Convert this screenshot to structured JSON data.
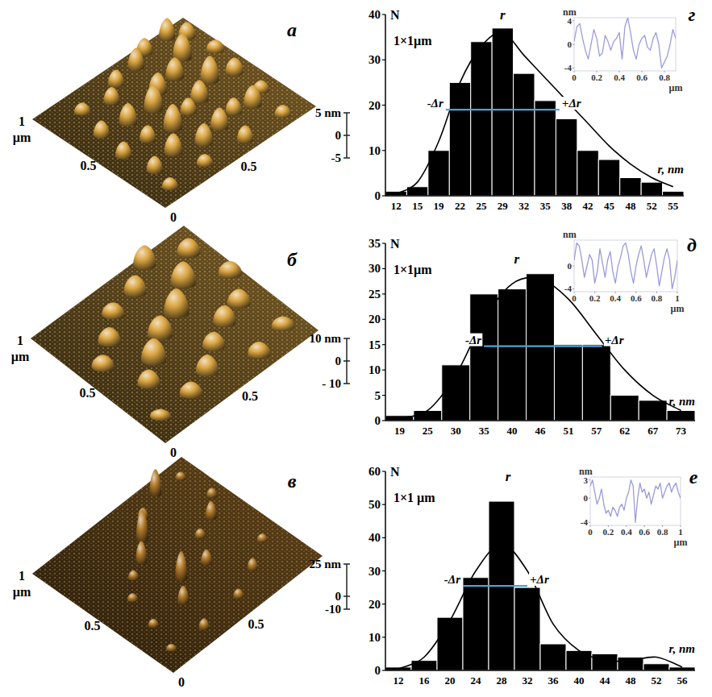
{
  "chart_data": [
    {
      "type": "surface",
      "label": "а",
      "color": "#d9a441",
      "xlim": [
        0,
        1
      ],
      "ylim": [
        0,
        1
      ],
      "xticks": [
        0,
        0.5
      ],
      "yticks": [
        0.5,
        1
      ],
      "ylabel": "µm",
      "zlim": [
        -5,
        5
      ],
      "zticks": [
        {
          "value": 5,
          "label": "5 nm"
        },
        0,
        -5
      ],
      "peaks": [
        [
          0.92,
          0.88,
          3,
          48
        ],
        [
          0.85,
          0.95,
          4,
          45
        ],
        [
          0.95,
          0.7,
          2,
          50
        ],
        [
          0.7,
          0.95,
          3,
          45
        ],
        [
          0.8,
          0.78,
          5,
          52
        ],
        [
          0.6,
          0.9,
          4,
          45
        ],
        [
          0.9,
          0.5,
          3,
          50
        ],
        [
          0.68,
          0.7,
          4,
          50
        ],
        [
          0.45,
          0.88,
          3,
          45
        ],
        [
          0.78,
          0.55,
          5,
          52
        ],
        [
          0.55,
          0.68,
          4,
          50
        ],
        [
          0.9,
          0.3,
          2,
          45
        ],
        [
          0.35,
          0.8,
          3,
          45
        ],
        [
          0.65,
          0.48,
          4,
          50
        ],
        [
          0.45,
          0.6,
          5,
          52
        ],
        [
          0.2,
          0.85,
          2,
          45
        ],
        [
          0.8,
          0.25,
          4,
          50
        ],
        [
          0.55,
          0.45,
          3,
          45
        ],
        [
          0.7,
          0.28,
          3,
          45
        ],
        [
          0.3,
          0.62,
          4,
          50
        ],
        [
          0.42,
          0.42,
          5,
          52
        ],
        [
          0.15,
          0.65,
          3,
          45
        ],
        [
          0.58,
          0.25,
          4,
          50
        ],
        [
          0.28,
          0.45,
          3,
          45
        ],
        [
          0.85,
          0.08,
          2,
          45
        ],
        [
          0.45,
          0.22,
          4,
          50
        ],
        [
          0.12,
          0.45,
          3,
          45
        ],
        [
          0.3,
          0.28,
          4,
          50
        ],
        [
          0.6,
          0.08,
          3,
          45
        ],
        [
          0.15,
          0.25,
          3,
          45
        ],
        [
          0.35,
          0.1,
          2,
          45
        ],
        [
          0.12,
          0.1,
          2,
          45
        ]
      ]
    },
    {
      "type": "surface",
      "label": "б",
      "color": "#d9a441",
      "xlim": [
        0,
        1
      ],
      "ylim": [
        0,
        1
      ],
      "xticks": [
        0,
        0.5
      ],
      "yticks": [
        0.5,
        1
      ],
      "ylabel": "µm",
      "zlim": [
        -10,
        10
      ],
      "zticks": [
        {
          "value": 10,
          "label": "10 nm"
        },
        0,
        {
          "value": -10,
          "label": "- 10"
        }
      ],
      "peaks": [
        [
          0.9,
          0.85,
          6,
          62
        ],
        [
          0.7,
          0.95,
          8,
          60
        ],
        [
          0.95,
          0.6,
          5,
          62
        ],
        [
          0.75,
          0.72,
          9,
          66
        ],
        [
          0.55,
          0.85,
          7,
          60
        ],
        [
          0.85,
          0.42,
          6,
          62
        ],
        [
          0.6,
          0.6,
          10,
          66
        ],
        [
          0.38,
          0.82,
          5,
          60
        ],
        [
          0.72,
          0.38,
          7,
          60
        ],
        [
          0.45,
          0.55,
          8,
          66
        ],
        [
          0.25,
          0.7,
          6,
          60
        ],
        [
          0.9,
          0.15,
          4,
          60
        ],
        [
          0.58,
          0.3,
          6,
          60
        ],
        [
          0.32,
          0.45,
          9,
          66
        ],
        [
          0.12,
          0.6,
          5,
          60
        ],
        [
          0.7,
          0.1,
          5,
          60
        ],
        [
          0.45,
          0.2,
          7,
          60
        ],
        [
          0.2,
          0.35,
          6,
          60
        ],
        [
          0.3,
          0.15,
          5,
          60
        ],
        [
          0.1,
          0.15,
          3,
          55
        ]
      ]
    },
    {
      "type": "surface",
      "label": "в",
      "color": "#b07a2a",
      "xlim": [
        0,
        1
      ],
      "ylim": [
        0,
        1
      ],
      "xticks": [
        0,
        0.5
      ],
      "yticks": [
        0.5,
        1
      ],
      "ylabel": "µm",
      "zlim": [
        -10,
        25
      ],
      "zticks": [
        {
          "value": 25,
          "label": "25 nm"
        },
        0,
        -10
      ],
      "peaks": [
        [
          0.9,
          0.9,
          5,
          28
        ],
        [
          0.75,
          0.92,
          18,
          32
        ],
        [
          0.92,
          0.7,
          6,
          28
        ],
        [
          0.6,
          0.85,
          8,
          28
        ],
        [
          0.82,
          0.6,
          12,
          30
        ],
        [
          0.5,
          0.75,
          22,
          32
        ],
        [
          0.7,
          0.55,
          6,
          28
        ],
        [
          0.4,
          0.65,
          15,
          30
        ],
        [
          0.88,
          0.3,
          5,
          28
        ],
        [
          0.6,
          0.4,
          10,
          30
        ],
        [
          0.3,
          0.6,
          6,
          28
        ],
        [
          0.45,
          0.42,
          20,
          32
        ],
        [
          0.72,
          0.2,
          8,
          28
        ],
        [
          0.2,
          0.5,
          5,
          28
        ],
        [
          0.35,
          0.3,
          12,
          30
        ],
        [
          0.55,
          0.12,
          6,
          28
        ],
        [
          0.15,
          0.3,
          5,
          28
        ],
        [
          0.3,
          0.1,
          7,
          28
        ],
        [
          0.1,
          0.12,
          4,
          28
        ]
      ]
    },
    {
      "type": "bar",
      "label": "г",
      "subtitle": "1×1µm",
      "ylabel": "N",
      "xlabel": "r, nm",
      "color": "#000000",
      "categories": [
        12,
        15,
        19,
        22,
        25,
        29,
        32,
        35,
        38,
        42,
        45,
        48,
        52,
        55
      ],
      "values": [
        1,
        2,
        10,
        25,
        34,
        37,
        27,
        21,
        17,
        10,
        8,
        4,
        3,
        1
      ],
      "fit": [
        0.5,
        3,
        12,
        25,
        33,
        36,
        31,
        26,
        21,
        16,
        11,
        7,
        4,
        2
      ],
      "ylim": [
        0,
        40
      ],
      "yticks": [
        0,
        10,
        20,
        30,
        40
      ],
      "delta_r": {
        "y": 19,
        "from": 20,
        "to": 37,
        "from_label": "-Δr",
        "to_label": "+Δr",
        "color": "#4aa3d8"
      },
      "peak_label": {
        "text": "r",
        "x": 29,
        "y": 39
      },
      "inset": {
        "type": "line",
        "color": "#9b9bdc",
        "ylabel": "nm",
        "xlabel": "µm",
        "x": [
          0,
          0.025,
          0.05,
          0.075,
          0.1,
          0.125,
          0.15,
          0.175,
          0.2,
          0.225,
          0.25,
          0.275,
          0.3,
          0.325,
          0.35,
          0.375,
          0.4,
          0.425,
          0.45,
          0.475,
          0.5,
          0.525,
          0.55,
          0.575,
          0.6,
          0.625,
          0.65,
          0.675,
          0.7,
          0.725,
          0.75,
          0.775,
          0.8,
          0.825,
          0.85,
          0.875,
          0.9
        ],
        "values": [
          0.5,
          3,
          3.5,
          1,
          -1,
          -2.5,
          0,
          2.5,
          1,
          -2,
          -1.5,
          1.5,
          0.5,
          -1,
          0.5,
          1,
          2,
          -2.5,
          3,
          4.5,
          2,
          -1,
          -2.5,
          0,
          1,
          1.5,
          -0.5,
          -1,
          1,
          2,
          0,
          -4,
          -3,
          -2,
          0,
          2.5,
          1
        ],
        "xlim": [
          0,
          0.9
        ],
        "ylim": [
          -4.5,
          4.5
        ],
        "xticks": [
          0,
          0.2,
          0.4,
          0.6,
          0.8
        ],
        "yticks": [
          -4,
          0,
          4
        ]
      }
    },
    {
      "type": "bar",
      "label": "д",
      "subtitle": "1×1µm",
      "ylabel": "N",
      "xlabel": "r, nm",
      "color": "#000000",
      "categories": [
        19,
        25,
        30,
        35,
        40,
        46,
        51,
        57,
        62,
        67,
        73
      ],
      "values": [
        1,
        2,
        11,
        25,
        26,
        29,
        15,
        15,
        5,
        4,
        2
      ],
      "fit": [
        0.5,
        2,
        9,
        20,
        27,
        28,
        24,
        17,
        10,
        5,
        2
      ],
      "ylim": [
        0,
        35
      ],
      "yticks": [
        0,
        5,
        10,
        15,
        20,
        25,
        30,
        35
      ],
      "delta_r": {
        "y": 14.7,
        "from": 35,
        "to": 58,
        "from_label": "-Δr",
        "to_label": "+Δr",
        "color": "#4aa3d8"
      },
      "peak_label": {
        "text": "r",
        "x": 41,
        "y": 31
      },
      "inset": {
        "type": "line",
        "color": "#9b9bdc",
        "ylabel": "nm",
        "xlabel": "µm",
        "x": [
          0,
          0.025,
          0.05,
          0.075,
          0.1,
          0.125,
          0.15,
          0.175,
          0.2,
          0.225,
          0.25,
          0.275,
          0.3,
          0.325,
          0.35,
          0.375,
          0.4,
          0.425,
          0.45,
          0.475,
          0.5,
          0.525,
          0.55,
          0.575,
          0.6,
          0.625,
          0.65,
          0.675,
          0.7,
          0.725,
          0.75,
          0.775,
          0.8,
          0.825,
          0.85,
          0.875,
          0.9,
          0.925,
          0.95,
          0.975,
          1
        ],
        "values": [
          1,
          4,
          3.5,
          1,
          -2,
          0,
          2,
          1,
          -3,
          -1,
          3,
          0.5,
          -2,
          1,
          2.5,
          -1,
          -3,
          0,
          1.5,
          3.5,
          4,
          2,
          -1,
          -3,
          0,
          2,
          3.5,
          1,
          -2,
          0,
          2,
          3,
          0,
          -3.5,
          -1,
          1.5,
          3,
          1,
          -4,
          -2,
          1
        ],
        "xlim": [
          0,
          1
        ],
        "ylim": [
          -4.5,
          4.5
        ],
        "xticks": [
          0,
          0.2,
          0.4,
          0.6,
          0.8,
          1
        ],
        "yticks": [
          -4,
          0
        ]
      }
    },
    {
      "type": "bar",
      "label": "е",
      "subtitle": "1×1 µm",
      "ylabel": "N",
      "xlabel": "r, nm",
      "color": "#000000",
      "categories": [
        12,
        16,
        20,
        24,
        28,
        32,
        36,
        40,
        44,
        48,
        52,
        56
      ],
      "values": [
        1,
        3,
        16,
        28,
        51,
        25,
        8,
        6,
        5,
        4,
        2,
        1
      ],
      "fit": [
        0.5,
        4,
        15,
        30,
        38,
        30,
        14,
        6,
        3,
        3,
        4,
        1
      ],
      "ylim": [
        0,
        60
      ],
      "yticks": [
        0,
        10,
        20,
        30,
        40,
        50,
        60
      ],
      "delta_r": {
        "y": 25.5,
        "from": 22,
        "to": 32,
        "from_label": "-Δr",
        "to_label": "+Δr",
        "color": "#4aa3d8"
      },
      "peak_label": {
        "text": "r",
        "x": 29,
        "y": 57
      },
      "inset": {
        "type": "line",
        "color": "#9b9bdc",
        "ylabel": "nm",
        "xlabel": "µm",
        "x": [
          0,
          0.025,
          0.05,
          0.075,
          0.1,
          0.125,
          0.15,
          0.175,
          0.2,
          0.225,
          0.25,
          0.275,
          0.3,
          0.325,
          0.35,
          0.375,
          0.4,
          0.425,
          0.45,
          0.475,
          0.5,
          0.525,
          0.55,
          0.575,
          0.6,
          0.625,
          0.65,
          0.675,
          0.7,
          0.725,
          0.75,
          0.775,
          0.8,
          0.825,
          0.85,
          0.875,
          0.9,
          0.925,
          0.95,
          0.975,
          1
        ],
        "values": [
          2,
          3,
          1,
          -1,
          0,
          1.5,
          -1,
          -2.5,
          -2,
          -3,
          -1.5,
          -2,
          -3,
          -1.5,
          -1,
          -2,
          0,
          1,
          3,
          2,
          -4,
          0,
          2.5,
          1,
          1.5,
          0,
          1,
          -1,
          0.5,
          2,
          1.5,
          2.5,
          0,
          1,
          2,
          2.5,
          1,
          2,
          2.5,
          1,
          0
        ],
        "xlim": [
          0,
          1
        ],
        "ylim": [
          -4.5,
          3.5
        ],
        "xticks": [
          0,
          0.2,
          0.4,
          0.6,
          0.8,
          1
        ],
        "yticks": [
          -4,
          0,
          3
        ]
      }
    }
  ]
}
